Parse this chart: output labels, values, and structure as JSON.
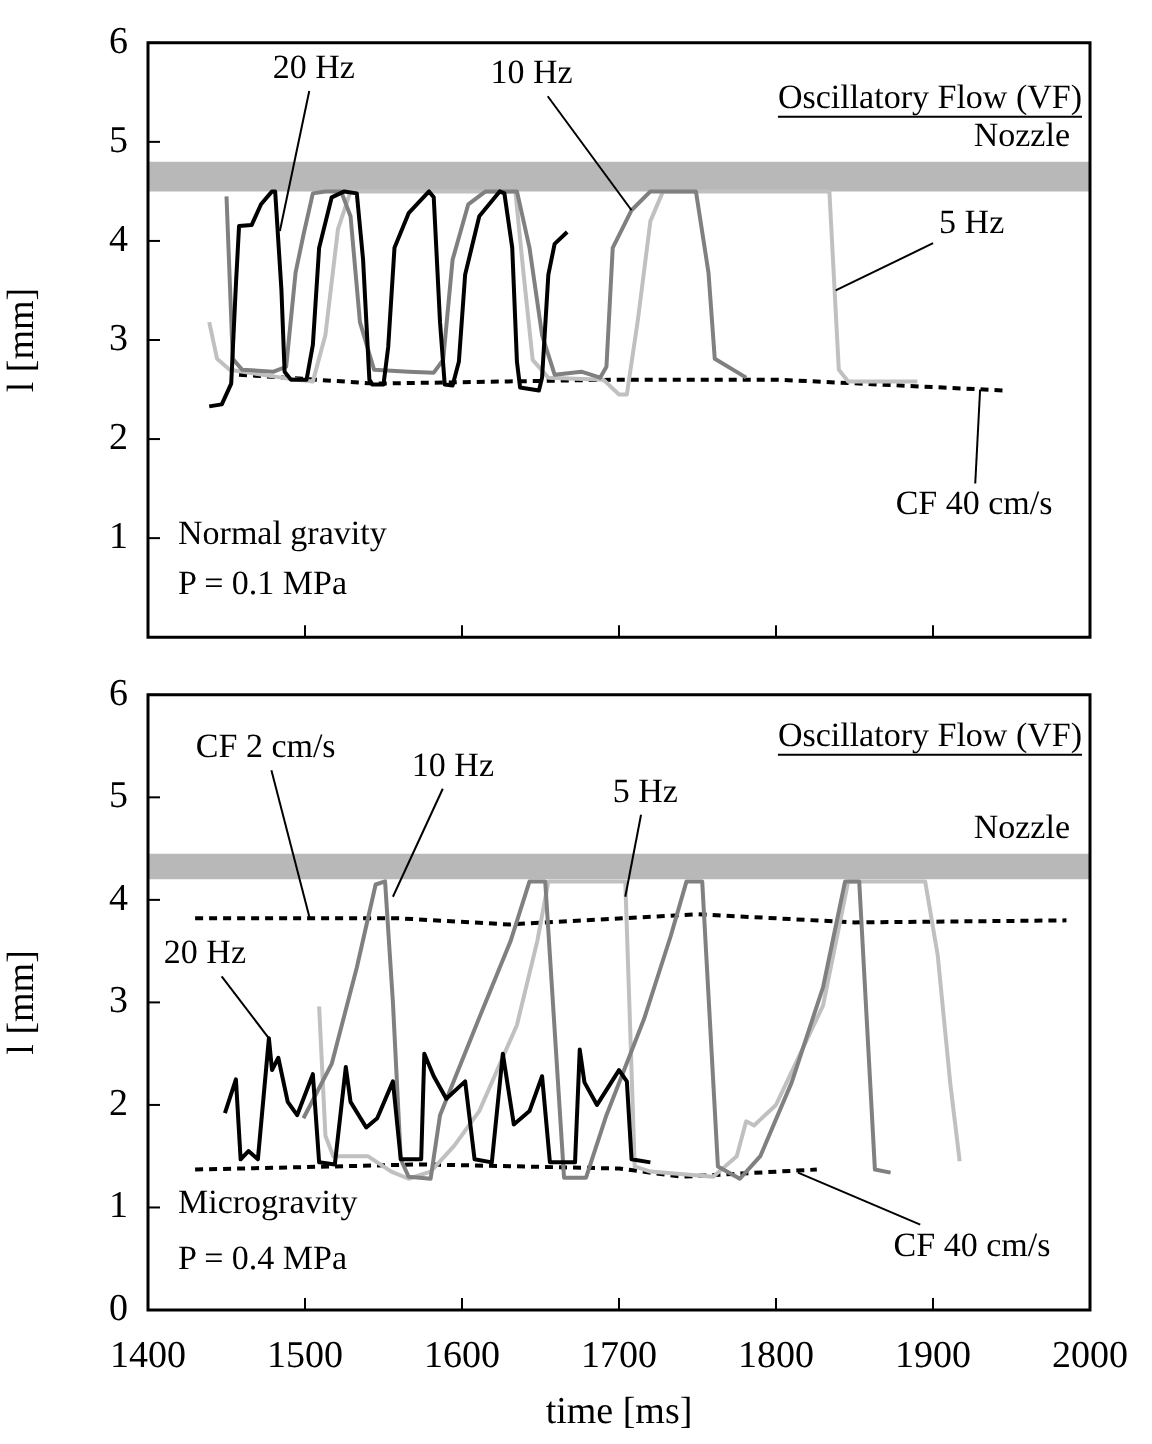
{
  "chart_data": [
    {
      "type": "line",
      "ylabel": "l [mm]",
      "xlim": [
        1400,
        2000
      ],
      "xticks": [
        1400,
        1500,
        1600,
        1700,
        1800,
        1900,
        2000
      ],
      "ylim": [
        0,
        6
      ],
      "yticks": [
        1,
        2,
        3,
        4,
        5,
        6
      ],
      "tick_labels": "y",
      "marker": "none",
      "series": [
        {
          "color": "#000000",
          "x": [
            1439,
            1447,
            1453,
            1456,
            1458,
            1466,
            1472,
            1479,
            1481,
            1485,
            1487,
            1491,
            1501,
            1505,
            1509,
            1517,
            1525,
            1533,
            1537,
            1541,
            1543,
            1550,
            1553,
            1557,
            1566,
            1579,
            1582,
            1586,
            1589,
            1594,
            1598,
            1602,
            1611,
            1624,
            1627,
            1632,
            1635,
            1637,
            1649,
            1651,
            1655,
            1659,
            1667
          ],
          "values": [
            2.33,
            2.35,
            2.56,
            3.56,
            4.15,
            4.16,
            4.37,
            4.5,
            4.5,
            3.5,
            2.68,
            2.6,
            2.6,
            2.95,
            3.93,
            4.44,
            4.5,
            4.48,
            3.81,
            2.6,
            2.55,
            2.55,
            2.93,
            3.93,
            4.28,
            4.5,
            4.44,
            3.18,
            2.55,
            2.54,
            2.78,
            3.66,
            4.25,
            4.5,
            4.48,
            3.93,
            2.78,
            2.52,
            2.49,
            2.62,
            3.66,
            3.97,
            4.09
          ]
        },
        {
          "color": "#808080",
          "x": [
            1450,
            1454,
            1460,
            1480,
            1488,
            1494,
            1499,
            1505,
            1513,
            1523,
            1529,
            1535,
            1544,
            1566,
            1582,
            1588,
            1594,
            1604,
            1615,
            1635,
            1643,
            1651,
            1659,
            1676,
            1688,
            1692,
            1696,
            1708,
            1720,
            1749,
            1757,
            1761,
            1781
          ],
          "values": [
            4.45,
            2.81,
            2.7,
            2.68,
            2.73,
            3.68,
            4.06,
            4.48,
            4.5,
            4.5,
            4.25,
            3.18,
            2.7,
            2.68,
            2.67,
            2.8,
            3.81,
            4.37,
            4.5,
            4.5,
            3.93,
            3.05,
            2.65,
            2.68,
            2.62,
            2.73,
            3.93,
            4.31,
            4.5,
            4.5,
            3.68,
            2.81,
            2.62
          ]
        },
        {
          "color": "#c0c0c0",
          "x": [
            1439,
            1444,
            1452,
            1485,
            1505,
            1513,
            1521,
            1529,
            1634,
            1639,
            1645,
            1655,
            1690,
            1700,
            1705,
            1712,
            1720,
            1728,
            1834,
            1837,
            1840,
            1846,
            1870,
            1890
          ],
          "values": [
            3.18,
            2.81,
            2.7,
            2.62,
            2.58,
            3.05,
            4.12,
            4.5,
            4.5,
            3.7,
            2.8,
            2.62,
            2.6,
            2.45,
            2.45,
            3.2,
            4.2,
            4.5,
            4.5,
            3.6,
            2.7,
            2.58,
            2.58,
            2.58
          ]
        },
        {
          "color": "#000000",
          "line_style": "dashed",
          "x": [
            1458,
            1545,
            1700,
            1800,
            1946
          ],
          "values": [
            2.65,
            2.56,
            2.6,
            2.6,
            2.49
          ]
        }
      ],
      "bands": [
        {
          "axis": "y",
          "from": 4.5,
          "to": 4.8,
          "label": "Nozzle",
          "color": "#b8b8b8"
        }
      ],
      "annotations": [
        "Oscillatory Flow (VF)",
        {
          "text": "20 Hz",
          "x": 1484,
          "y": 4.1
        },
        {
          "text": "10 Hz",
          "x": 1708,
          "y": 4.31
        },
        {
          "text": "5 Hz",
          "x": 1838,
          "y": 3.5
        },
        {
          "text": "CF 40 cm/s",
          "x": 1930,
          "y": 2.5
        },
        "Normal gravity",
        "P = 0.1 MPa"
      ]
    },
    {
      "type": "line",
      "xlabel": "time [ms]",
      "ylabel": "l [mm]",
      "xlim": [
        1400,
        2000
      ],
      "xticks": [
        1400,
        1500,
        1600,
        1700,
        1800,
        1900,
        2000
      ],
      "ylim": [
        0,
        6
      ],
      "yticks": [
        0,
        1,
        2,
        3,
        4,
        5,
        6
      ],
      "marker": "none",
      "series": [
        {
          "color": "#000000",
          "x": [
            1449,
            1456,
            1459,
            1464,
            1470,
            1477,
            1479,
            1483,
            1489,
            1495,
            1505,
            1509,
            1519,
            1526,
            1529,
            1539,
            1546,
            1556,
            1561,
            1574,
            1576,
            1582,
            1590,
            1602,
            1608,
            1619,
            1626,
            1633,
            1643,
            1651,
            1656,
            1672,
            1675,
            1678,
            1686,
            1700,
            1705,
            1708,
            1720
          ],
          "values": [
            1.92,
            2.25,
            1.47,
            1.55,
            1.47,
            2.65,
            2.34,
            2.46,
            2.03,
            1.9,
            2.3,
            1.44,
            1.42,
            2.37,
            2.03,
            1.78,
            1.87,
            2.23,
            1.47,
            1.47,
            2.5,
            2.28,
            2.06,
            2.23,
            1.47,
            1.44,
            2.5,
            1.81,
            1.94,
            2.28,
            1.44,
            1.44,
            2.54,
            2.22,
            2.0,
            2.34,
            2.23,
            1.47,
            1.44
          ]
        },
        {
          "color": "#808080",
          "x": [
            1499,
            1517,
            1533,
            1545,
            1551,
            1556,
            1561,
            1566,
            1580,
            1586,
            1611,
            1631,
            1643,
            1653,
            1665,
            1679,
            1692,
            1716,
            1733,
            1743,
            1753,
            1763,
            1777,
            1790,
            1810,
            1830,
            1844,
            1853,
            1863,
            1873
          ],
          "values": [
            1.87,
            2.4,
            3.34,
            4.15,
            4.18,
            3.0,
            1.47,
            1.3,
            1.28,
            1.9,
            2.85,
            3.6,
            4.18,
            4.18,
            1.29,
            1.29,
            1.9,
            2.84,
            3.65,
            4.18,
            4.18,
            1.4,
            1.28,
            1.5,
            2.22,
            3.15,
            4.18,
            4.18,
            1.37,
            1.34
          ]
        },
        {
          "color": "#c0c0c0",
          "x": [
            1509,
            1513,
            1518,
            1540,
            1555,
            1566,
            1580,
            1595,
            1611,
            1635,
            1648,
            1655,
            1704,
            1707,
            1710,
            1720,
            1760,
            1775,
            1781,
            1786,
            1800,
            1830,
            1846,
            1895,
            1903,
            1911,
            1917
          ],
          "values": [
            2.96,
            1.7,
            1.5,
            1.5,
            1.35,
            1.28,
            1.35,
            1.6,
            1.94,
            2.78,
            3.6,
            4.18,
            4.18,
            2.8,
            1.4,
            1.35,
            1.3,
            1.5,
            1.84,
            1.8,
            2.0,
            2.97,
            4.18,
            4.18,
            3.46,
            2.21,
            1.45
          ]
        },
        {
          "color": "#000000",
          "line_style": "dashed",
          "x": [
            1430,
            1560,
            1630,
            1750,
            1850,
            1985
          ],
          "values": [
            3.82,
            3.82,
            3.76,
            3.86,
            3.78,
            3.8
          ]
        },
        {
          "color": "#000000",
          "line_style": "dashed",
          "x": [
            1430,
            1575,
            1700,
            1740,
            1826
          ],
          "values": [
            1.37,
            1.42,
            1.38,
            1.3,
            1.37
          ]
        }
      ],
      "bands": [
        {
          "axis": "y",
          "from": 4.2,
          "to": 4.45,
          "label": "Nozzle",
          "color": "#b8b8b8"
        }
      ],
      "annotations": [
        "Oscillatory Flow (VF)",
        {
          "text": "CF 2 cm/s",
          "x": 1503,
          "y": 3.82
        },
        {
          "text": "10 Hz",
          "x": 1556,
          "y": 4.03
        },
        {
          "text": "5 Hz",
          "x": 1704,
          "y": 4.03
        },
        {
          "text": "20 Hz",
          "x": 1477,
          "y": 2.65
        },
        {
          "text": "CF 40 cm/s",
          "x": 1814,
          "y": 1.34
        },
        "Microgravity",
        "P = 0.4 MPa"
      ]
    }
  ]
}
